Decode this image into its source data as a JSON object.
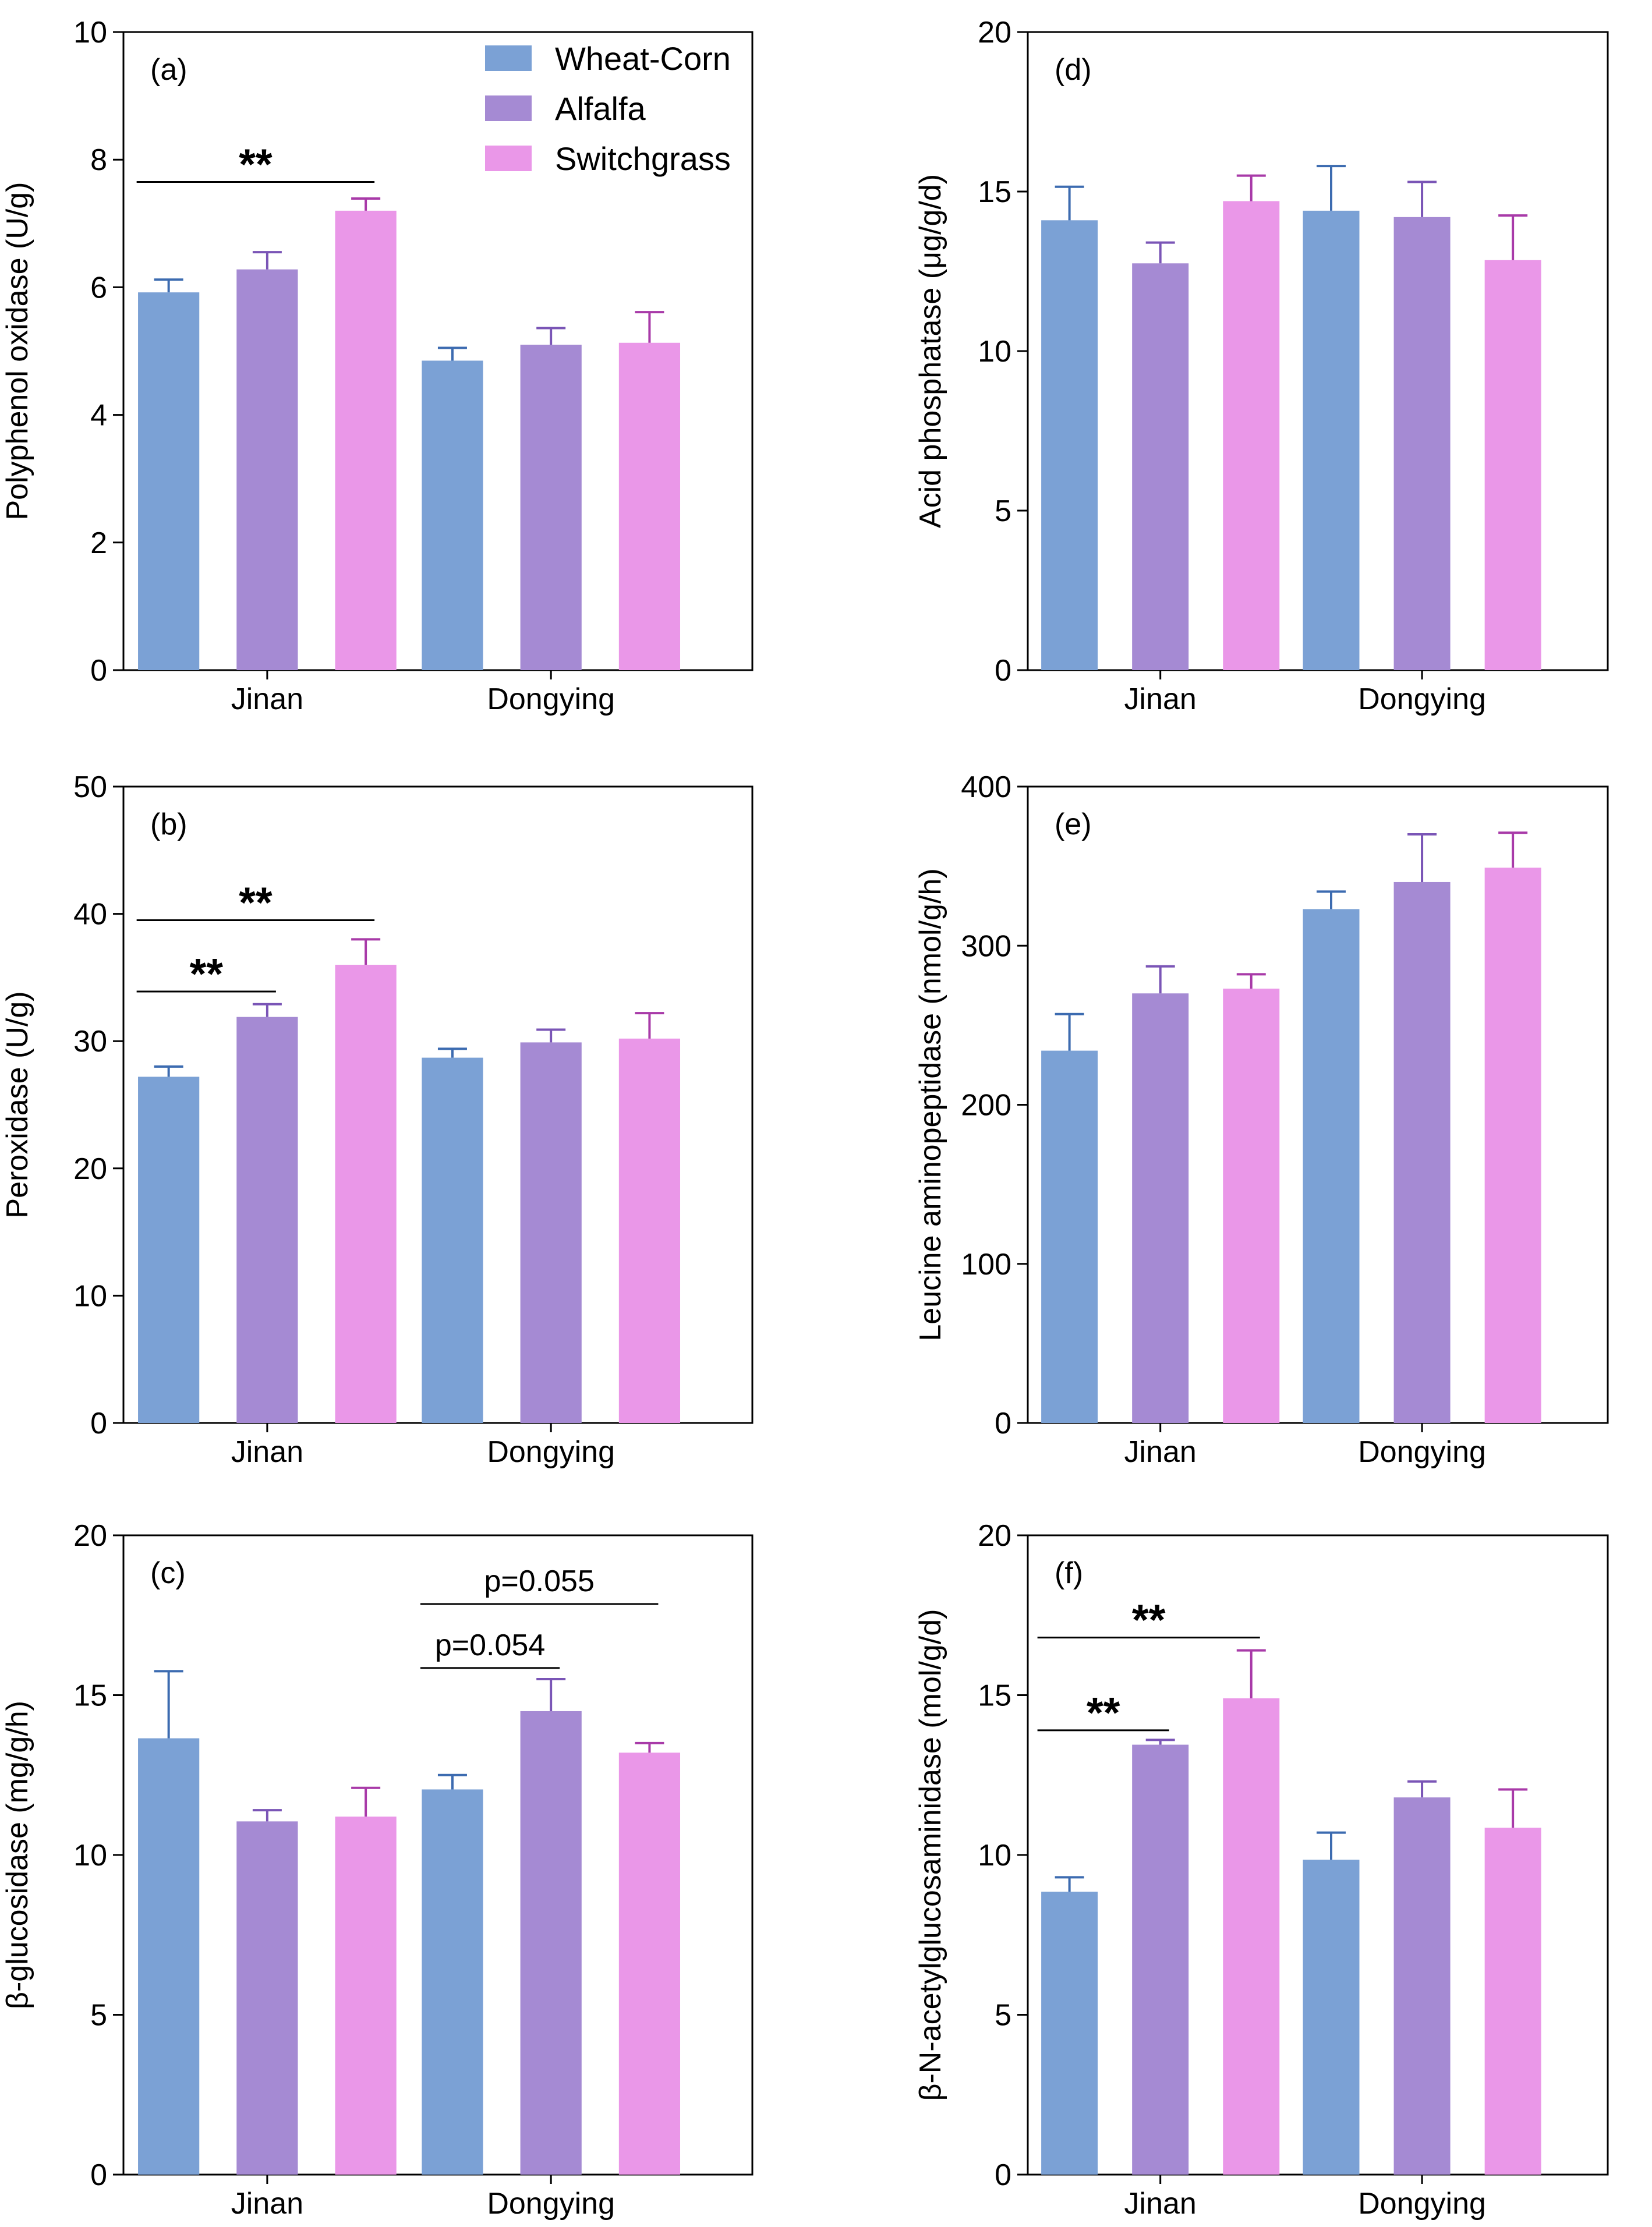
{
  "colors": {
    "wheat_corn": "#7ba1d5",
    "alfalfa": "#a58ad3",
    "switchgrass": "#ea97e8",
    "wheat_corn_err": "#3c6bb0",
    "alfalfa_err": "#7a55b6",
    "switchgrass_err": "#a83aa8"
  },
  "legend": [
    "Wheat-Corn",
    "Alfalfa",
    "Switchgrass"
  ],
  "chart_data": [
    {
      "panel": "(a)",
      "type": "bar",
      "ylabel": "Polyphenol oxidase (U/g)",
      "ylim": [
        0,
        10
      ],
      "yticks": [
        "0",
        "2",
        "4",
        "6",
        "8",
        "10"
      ],
      "categories": [
        "Jinan",
        "Dongying"
      ],
      "series": [
        {
          "name": "Wheat-Corn",
          "values": [
            5.92,
            4.85
          ],
          "errors": [
            0.2,
            0.2
          ]
        },
        {
          "name": "Alfalfa",
          "values": [
            6.28,
            5.1
          ],
          "errors": [
            0.27,
            0.26
          ]
        },
        {
          "name": "Switchgrass",
          "values": [
            7.2,
            5.13
          ],
          "errors": [
            0.19,
            0.48
          ]
        }
      ],
      "annotations": [
        {
          "text": "**",
          "group": 0,
          "from": 0,
          "to": 2,
          "y": 7.65
        }
      ]
    },
    {
      "panel": "(b)",
      "type": "bar",
      "ylabel": "Peroxidase (U/g)",
      "ylim": [
        0,
        50
      ],
      "yticks": [
        "0",
        "10",
        "20",
        "30",
        "40",
        "50"
      ],
      "categories": [
        "Jinan",
        "Dongying"
      ],
      "series": [
        {
          "name": "Wheat-Corn",
          "values": [
            27.2,
            28.7
          ],
          "errors": [
            0.8,
            0.7
          ]
        },
        {
          "name": "Alfalfa",
          "values": [
            31.9,
            29.9
          ],
          "errors": [
            1.0,
            1.0
          ]
        },
        {
          "name": "Switchgrass",
          "values": [
            36.0,
            30.2
          ],
          "errors": [
            2.0,
            2.0
          ]
        }
      ],
      "annotations": [
        {
          "text": "**",
          "group": 0,
          "from": 0,
          "to": 1,
          "y": 33.9
        },
        {
          "text": "**",
          "group": 0,
          "from": 0,
          "to": 2,
          "y": 39.5
        }
      ]
    },
    {
      "panel": "(c)",
      "type": "bar",
      "ylabel": "β-glucosidase (mg/g/h)",
      "ylim": [
        0,
        20
      ],
      "yticks": [
        "0",
        "5",
        "10",
        "15",
        "20"
      ],
      "categories": [
        "Jinan",
        "Dongying"
      ],
      "series": [
        {
          "name": "Wheat-Corn",
          "values": [
            13.65,
            12.05
          ],
          "errors": [
            2.1,
            0.45
          ]
        },
        {
          "name": "Alfalfa",
          "values": [
            11.05,
            14.5
          ],
          "errors": [
            0.35,
            1.0
          ]
        },
        {
          "name": "Switchgrass",
          "values": [
            11.2,
            13.2
          ],
          "errors": [
            0.9,
            0.3
          ]
        }
      ],
      "annotations": [
        {
          "text": "p=0.054",
          "group": 1,
          "from": 0,
          "to": 1,
          "y": 15.85
        },
        {
          "text": "p=0.055",
          "group": 1,
          "from": 0,
          "to": 2,
          "y": 17.85
        }
      ]
    },
    {
      "panel": "(d)",
      "type": "bar",
      "ylabel": "Acid phosphatase (μg/g/d)",
      "ylim": [
        0,
        20
      ],
      "yticks": [
        "0",
        "5",
        "10",
        "15",
        "20"
      ],
      "categories": [
        "Jinan",
        "Dongying"
      ],
      "series": [
        {
          "name": "Wheat-Corn",
          "values": [
            14.1,
            14.4
          ],
          "errors": [
            1.05,
            1.4
          ]
        },
        {
          "name": "Alfalfa",
          "values": [
            12.75,
            14.2
          ],
          "errors": [
            0.65,
            1.1
          ]
        },
        {
          "name": "Switchgrass",
          "values": [
            14.7,
            12.85
          ],
          "errors": [
            0.8,
            1.4
          ]
        }
      ],
      "annotations": []
    },
    {
      "panel": "(e)",
      "type": "bar",
      "ylabel": "Leucine aminopeptidase (nmol/g/h)",
      "ylim": [
        0,
        400
      ],
      "yticks": [
        "0",
        "100",
        "200",
        "300",
        "400"
      ],
      "categories": [
        "Jinan",
        "Dongying"
      ],
      "series": [
        {
          "name": "Wheat-Corn",
          "values": [
            234,
            323
          ],
          "errors": [
            23,
            11
          ]
        },
        {
          "name": "Alfalfa",
          "values": [
            270,
            340
          ],
          "errors": [
            17,
            30
          ]
        },
        {
          "name": "Switchgrass",
          "values": [
            273,
            349
          ],
          "errors": [
            9,
            22
          ]
        }
      ],
      "annotations": []
    },
    {
      "panel": "(f)",
      "type": "bar",
      "ylabel": "β-N-acetylglucosaminidase (mol/g/d)",
      "ylim": [
        0,
        20
      ],
      "yticks": [
        "0",
        "5",
        "10",
        "15",
        "20"
      ],
      "categories": [
        "Jinan",
        "Dongying"
      ],
      "series": [
        {
          "name": "Wheat-Corn",
          "values": [
            8.85,
            9.85
          ],
          "errors": [
            0.45,
            0.85
          ]
        },
        {
          "name": "Alfalfa",
          "values": [
            13.45,
            11.8
          ],
          "errors": [
            0.15,
            0.5
          ]
        },
        {
          "name": "Switchgrass",
          "values": [
            14.9,
            10.85
          ],
          "errors": [
            1.5,
            1.2
          ]
        }
      ],
      "annotations": [
        {
          "text": "**",
          "group": 0,
          "from": 0,
          "to": 1,
          "y": 13.9
        },
        {
          "text": "**",
          "group": 0,
          "from": 0,
          "to": 2,
          "y": 16.8
        }
      ]
    }
  ]
}
